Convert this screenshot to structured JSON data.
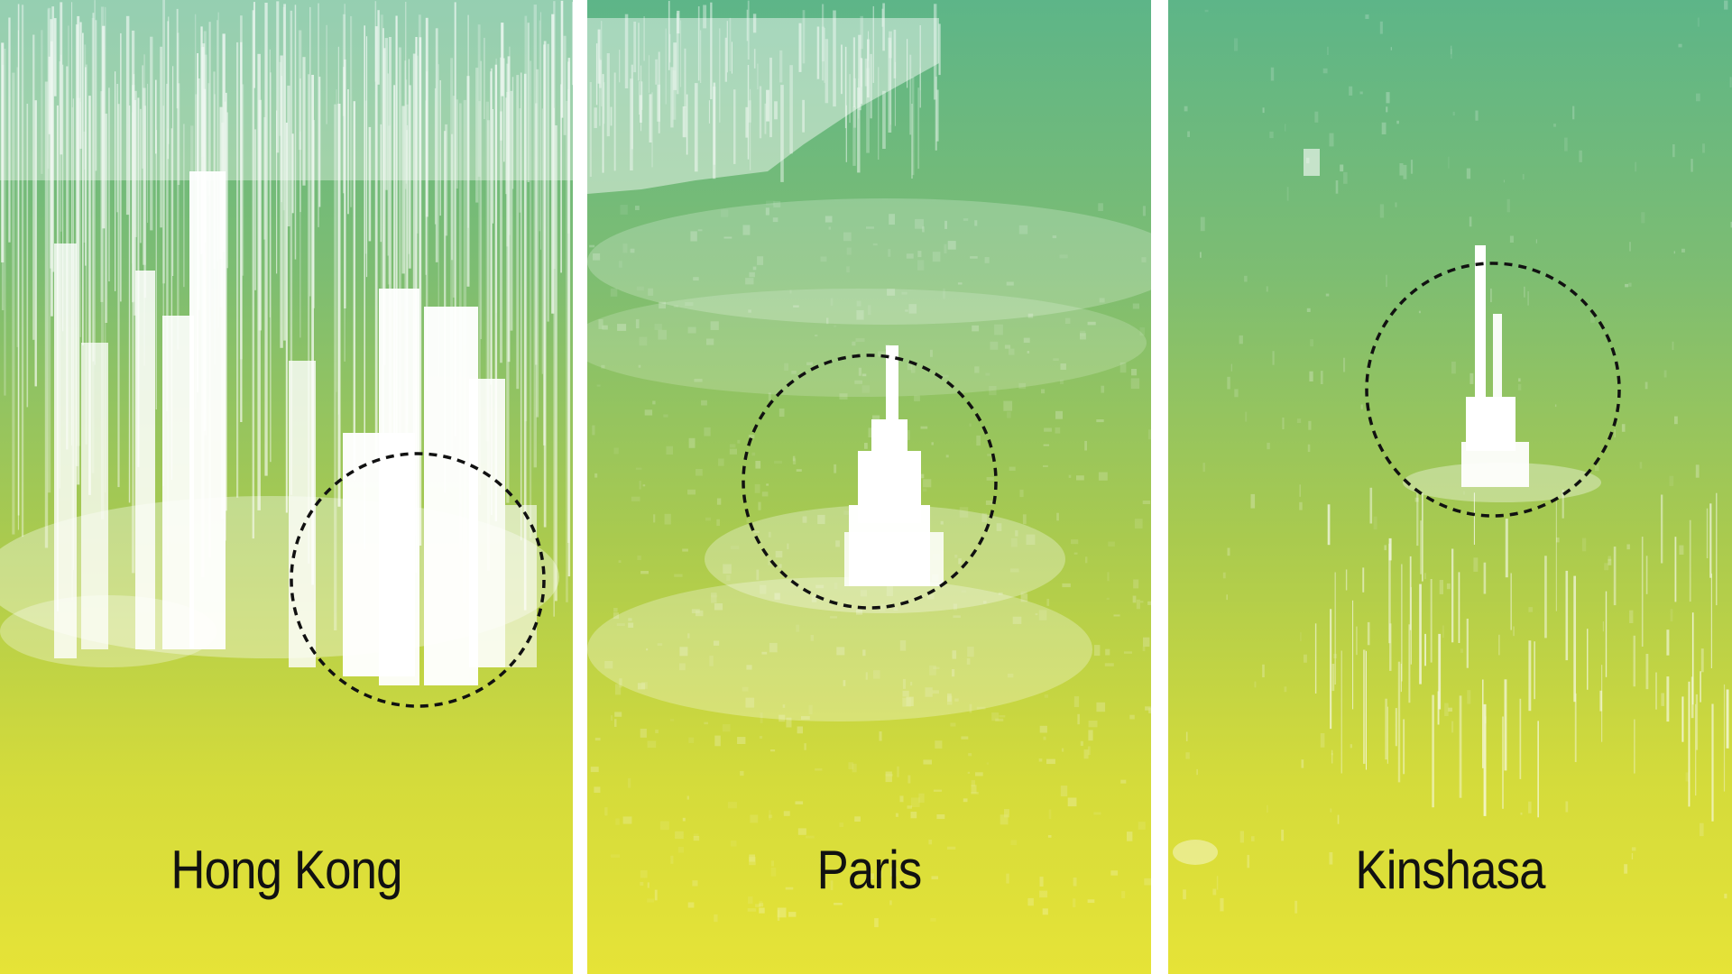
{
  "panels": [
    {
      "city": "Hong Kong"
    },
    {
      "city": "Paris"
    },
    {
      "city": "Kinshasa"
    }
  ],
  "style": {
    "gradient_top": "#5db588",
    "gradient_bottom": "#e6e337",
    "building_color": "#ffffff",
    "label_color": "#111111",
    "circle_stroke": "#111111"
  }
}
